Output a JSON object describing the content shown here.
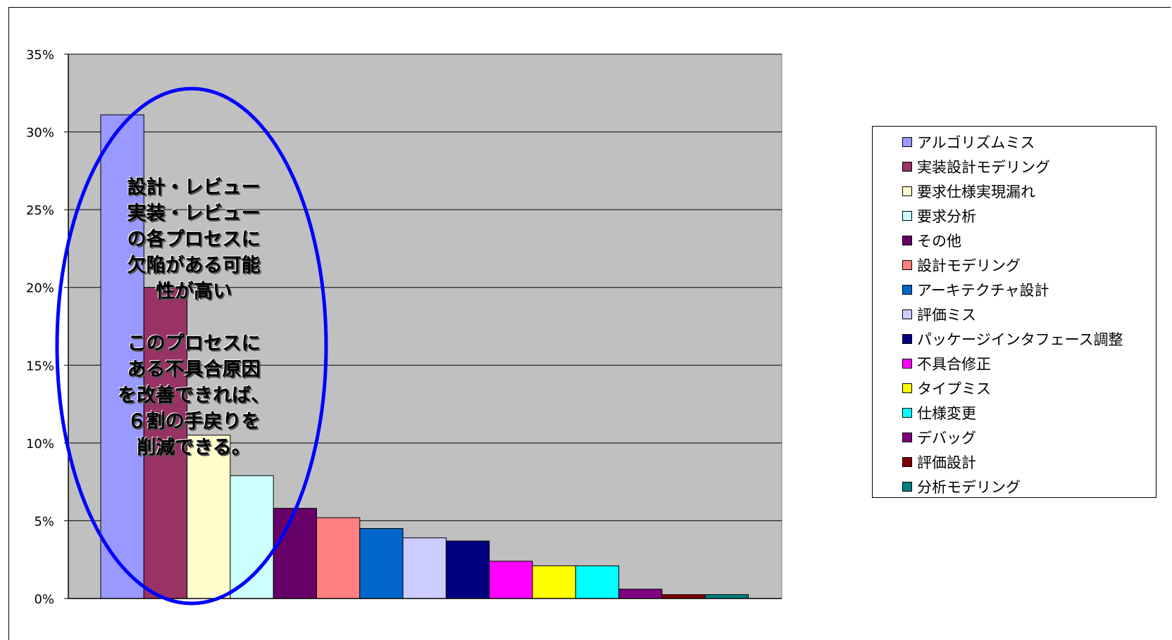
{
  "chart_data": {
    "type": "bar",
    "categories": [
      "アルゴリズムミス",
      "実装設計モデリング",
      "要求仕様実現漏れ",
      "要求分析",
      "その他",
      "設計モデリング",
      "アーキテクチャ設計",
      "評価ミス",
      "パッケージインタフェース調整",
      "不具合修正",
      "タイプミス",
      "仕様変更",
      "デバッグ",
      "評価設計",
      "分析モデリング"
    ],
    "values": [
      31.1,
      20.0,
      10.5,
      7.9,
      5.8,
      5.2,
      4.5,
      3.9,
      3.7,
      2.4,
      2.1,
      2.1,
      0.6,
      0.25,
      0.25
    ],
    "colors": [
      "#9999FF",
      "#993366",
      "#FFFFCC",
      "#CCFFFF",
      "#660066",
      "#FF8080",
      "#0066CC",
      "#CCCCFF",
      "#000080",
      "#FF00FF",
      "#FFFF00",
      "#00FFFF",
      "#800080",
      "#800000",
      "#008080"
    ],
    "ylim": [
      0,
      35
    ],
    "yticks": [
      "0%",
      "5%",
      "10%",
      "15%",
      "20%",
      "25%",
      "30%",
      "35%"
    ],
    "grid": true,
    "plot_background": "#C0C0C0",
    "legend_position": "right",
    "title": "",
    "xlabel": "",
    "ylabel": ""
  },
  "annotation": {
    "lines_top": [
      "設計・レビュー",
      "実装・レビュー",
      "の各プロセスに",
      "欠陥がある可能",
      "性が高い"
    ],
    "lines_bottom": [
      "このプロセスに",
      "ある不具合原因",
      "を改善できれば、",
      "６割の手戻りを",
      "削減できる。"
    ],
    "ellipse_color": "#0000FF"
  }
}
